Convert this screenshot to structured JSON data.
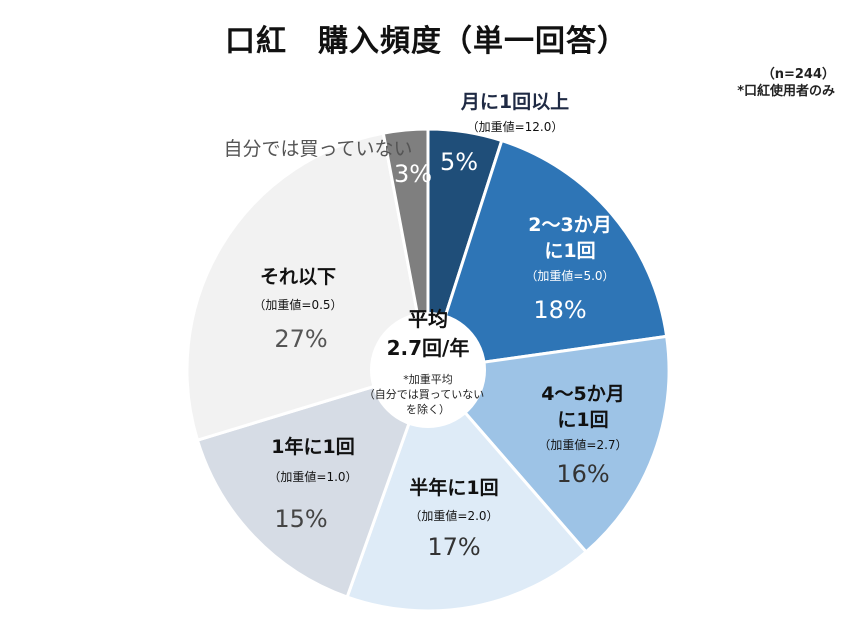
{
  "title": "口紅　購入頻度（単一回答）",
  "notes": {
    "sample": "（n=244）",
    "scope": "*口紅使用者のみ"
  },
  "center": {
    "line1": "平均",
    "line2": "2.7回/年",
    "note1": "*加重平均",
    "note2": "（自分では買っていない",
    "note3": "を除く）"
  },
  "colors": {
    "monthly": "#1f4e79",
    "two_three": "#2e75b6",
    "four_five": "#9dc3e6",
    "half_year": "#deebf7",
    "yearly": "#d6dce5",
    "less": "#f2f2f2",
    "none": "#7f7f7f",
    "center_ring": "#ffffff"
  },
  "chart_data": {
    "type": "pie",
    "title": "口紅　購入頻度（単一回答）",
    "donut": true,
    "start": "12 o'clock, clockwise",
    "unit": "%",
    "slices": [
      {
        "name": "月に1回以上",
        "weight": "（加重値=12.0）",
        "value": 5,
        "label": "5%",
        "color_key": "monthly"
      },
      {
        "name": "2～3か月に1回",
        "name_lines": [
          "2～3か月",
          "に1回"
        ],
        "weight": "（加重値=5.0）",
        "value": 18,
        "label": "18%",
        "color_key": "two_three"
      },
      {
        "name": "4～5か月に1回",
        "name_lines": [
          "4～5か月",
          "に1回"
        ],
        "weight": "（加重値=2.7）",
        "value": 16,
        "label": "16%",
        "color_key": "four_five"
      },
      {
        "name": "半年に1回",
        "weight": "（加重値=2.0）",
        "value": 17,
        "label": "17%",
        "color_key": "half_year"
      },
      {
        "name": "1年に1回",
        "weight": "（加重値=1.0）",
        "value": 15,
        "label": "15%",
        "color_key": "yearly"
      },
      {
        "name": "それ以下",
        "weight": "（加重値=0.5）",
        "value": 27,
        "label": "27%",
        "color_key": "less"
      },
      {
        "name": "自分では買っていない",
        "weight": "",
        "value": 3,
        "label": "3%",
        "color_key": "none"
      }
    ]
  }
}
